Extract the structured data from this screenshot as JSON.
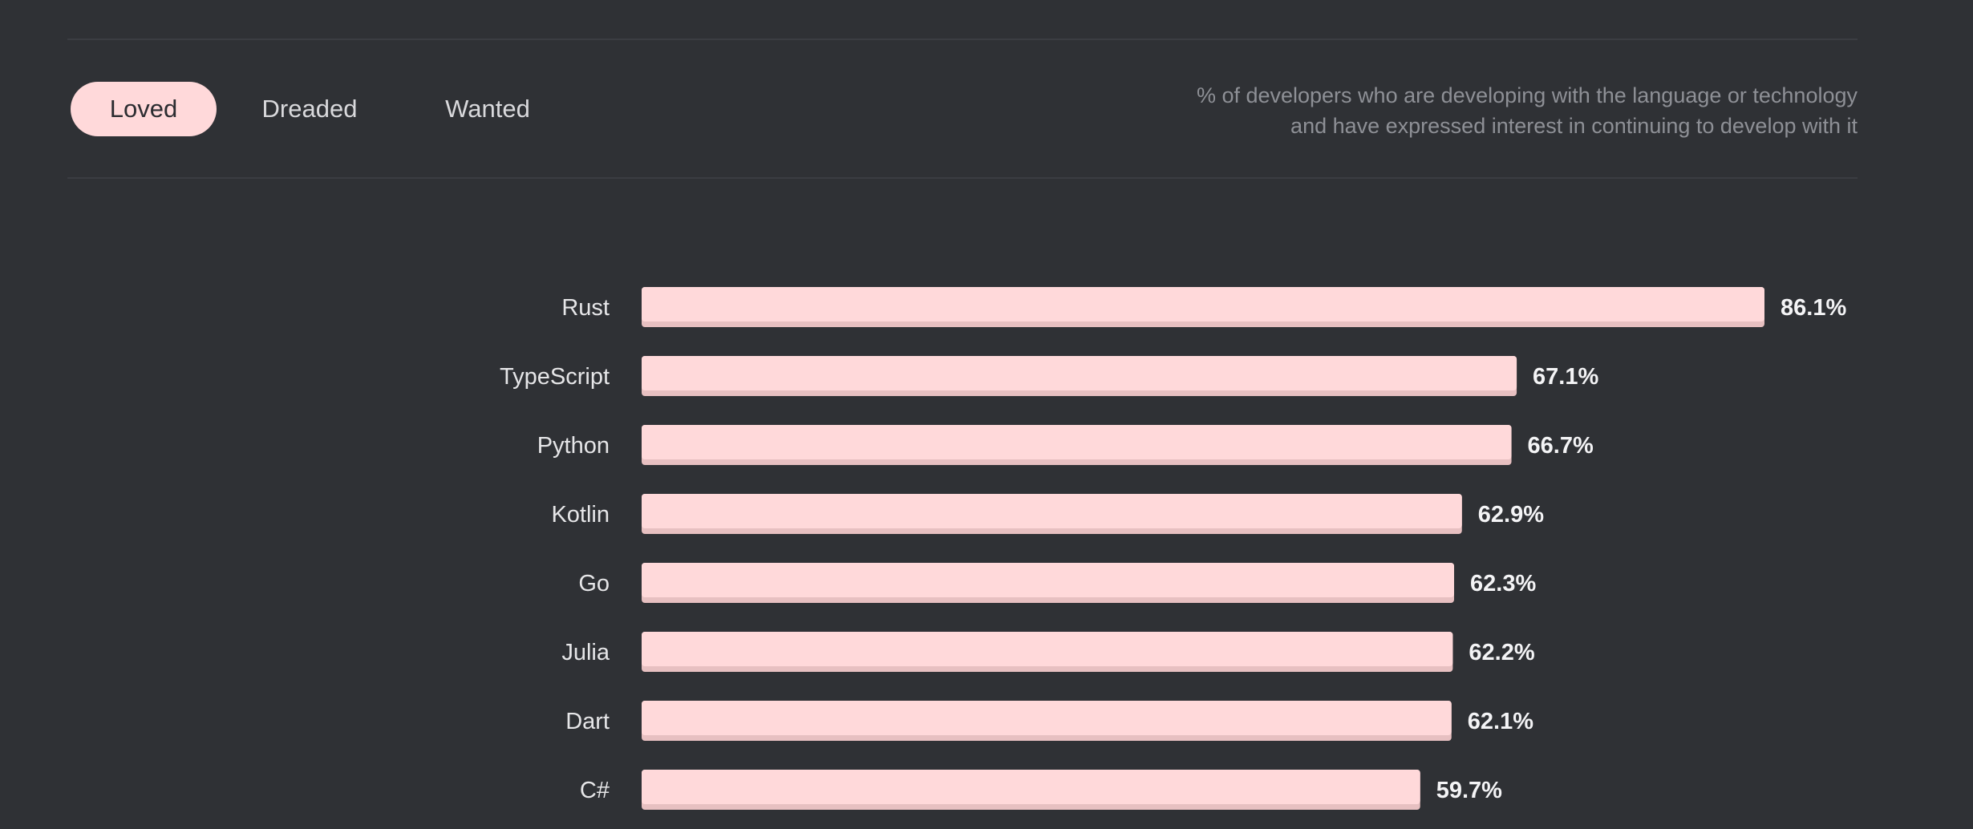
{
  "tabs": [
    {
      "label": "Loved",
      "active": true
    },
    {
      "label": "Dreaded",
      "active": false
    },
    {
      "label": "Wanted",
      "active": false
    }
  ],
  "description": {
    "line1": "% of developers who are developing with the language or technology",
    "line2": "and have expressed interest in continuing to develop with it"
  },
  "colors": {
    "background": "#2f3135",
    "bar": "#ffd9da",
    "bar_shadow": "#e7c0c1",
    "active_tab": "#ffd9da"
  },
  "chart_data": {
    "type": "bar",
    "orientation": "horizontal",
    "categories": [
      "Rust",
      "TypeScript",
      "Python",
      "Kotlin",
      "Go",
      "Julia",
      "Dart",
      "C#"
    ],
    "values": [
      86.1,
      67.1,
      66.7,
      62.9,
      62.3,
      62.2,
      62.1,
      59.7
    ],
    "value_labels": [
      "86.1%",
      "67.1%",
      "66.7%",
      "62.9%",
      "62.3%",
      "62.2%",
      "62.1%",
      "59.7%"
    ],
    "xlim": [
      0,
      86.1
    ],
    "grid": false,
    "legend": false
  }
}
